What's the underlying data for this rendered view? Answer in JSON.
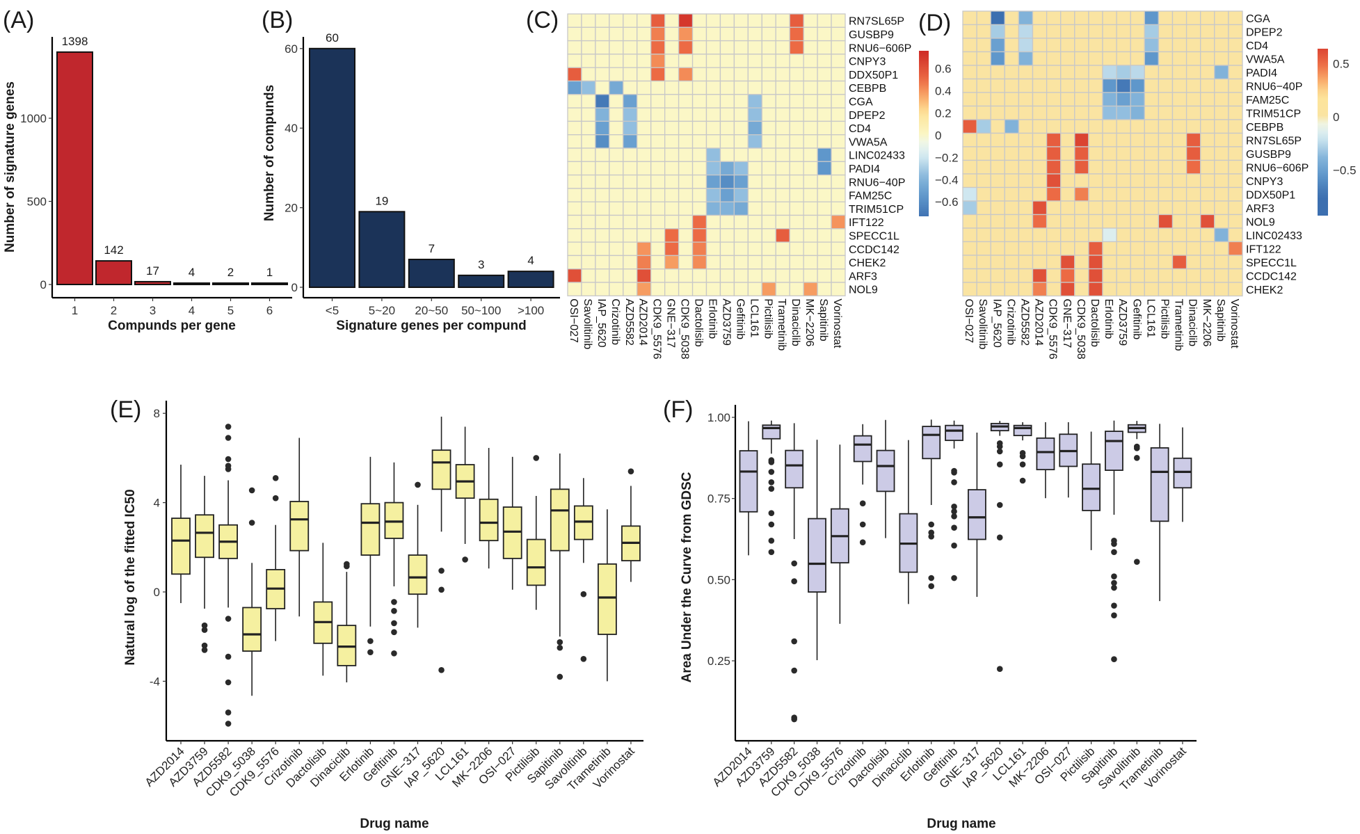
{
  "chart_data": [
    {
      "type": "bar",
      "panel_label": "(A)",
      "categories": [
        "1",
        "2",
        "3",
        "4",
        "5",
        "6"
      ],
      "values": [
        1398,
        142,
        17,
        4,
        2,
        1
      ],
      "xlabel": "Compunds per gene",
      "ylabel": "Number of signature genes",
      "yticks": [
        "0",
        "500",
        "1000"
      ],
      "ylim": [
        0,
        1490
      ],
      "bar_color": "#c0272d",
      "grid": false
    },
    {
      "type": "bar",
      "panel_label": "(B)",
      "categories": [
        "<5",
        "5~20",
        "20~50",
        "50~100",
        ">100"
      ],
      "values": [
        60,
        19,
        7,
        3,
        4
      ],
      "xlabel": "Signature genes per compund",
      "ylabel": "Number of compunds",
      "yticks": [
        "0",
        "20",
        "40",
        "60"
      ],
      "ylim": [
        0,
        63
      ],
      "bar_color": "#1b3358",
      "grid": false
    },
    {
      "type": "heatmap",
      "panel_label": "(C)",
      "rows": [
        "RN7SL65P",
        "GUSBP9",
        "RNU6−606P",
        "CNPY3",
        "DDX50P1",
        "CEBPB",
        "CGA",
        "DPEP2",
        "CD4",
        "VWA5A",
        "LINC02433",
        "PADI4",
        "RNU6−40P",
        "FAM25C",
        "TRIM51CP",
        "IFT122",
        "SPECC1L",
        "CCDC142",
        "CHEK2",
        "ARF3",
        "NOL9"
      ],
      "columns": [
        "OSI−027",
        "Savolitinib",
        "IAP_5620",
        "Crizotinib",
        "AZD5582",
        "AZD2014",
        "CDK9_5576",
        "GNE−317",
        "CDK9_5038",
        "Dactolisib",
        "Erlotinib",
        "AZD3759",
        "Gefitinib",
        "LCL161",
        "Pictilisib",
        "Trametinib",
        "Dinaciclib",
        "MK−2206",
        "Sapitinib",
        "Vorinostat"
      ],
      "values": {
        "RN7SL65P": {
          "CDK9_5576": 0.55,
          "CDK9_5038": 0.7,
          "Dinaciclib": 0.55
        },
        "GUSBP9": {
          "CDK9_5576": 0.45,
          "CDK9_5038": 0.4,
          "Dinaciclib": 0.5
        },
        "RNU6−606P": {
          "CDK9_5576": 0.5,
          "CDK9_5038": 0.5,
          "Dinaciclib": 0.5
        },
        "CNPY3": {
          "CDK9_5576": 0.42
        },
        "DDX50P1": {
          "OSI−027": 0.55,
          "CDK9_5576": 0.5,
          "CDK9_5038": 0.42
        },
        "CEBPB": {
          "OSI−027": -0.5,
          "Savolitinib": -0.35,
          "Crizotinib": -0.45
        },
        "CGA": {
          "IAP_5620": -0.7,
          "AZD5582": -0.5,
          "LCL161": -0.35
        },
        "DPEP2": {
          "IAP_5620": -0.4,
          "AZD5582": -0.35,
          "LCL161": -0.35
        },
        "CD4": {
          "IAP_5620": -0.5,
          "AZD5582": -0.35,
          "LCL161": -0.45
        },
        "VWA5A": {
          "IAP_5620": -0.6,
          "AZD5582": -0.5,
          "LCL161": -0.35
        },
        "LINC02433": {
          "Erlotinib": -0.35,
          "Sapitinib": -0.55
        },
        "PADI4": {
          "Erlotinib": -0.35,
          "AZD3759": -0.45,
          "Gefitinib": -0.35,
          "Sapitinib": -0.55
        },
        "RNU6−40P": {
          "Erlotinib": -0.5,
          "AZD3759": -0.6,
          "Gefitinib": -0.5
        },
        "FAM25C": {
          "Erlotinib": -0.35,
          "AZD3759": -0.5,
          "Gefitinib": -0.35
        },
        "TRIM51CP": {
          "Erlotinib": -0.4,
          "AZD3759": -0.4,
          "Gefitinib": -0.45
        },
        "IFT122": {
          "Dactolisib": 0.5,
          "Vorinostat": 0.4
        },
        "SPECC1L": {
          "GNE−317": 0.5,
          "Dactolisib": 0.5,
          "Trametinib": 0.55
        },
        "CCDC142": {
          "AZD2014": 0.4,
          "GNE−317": 0.5,
          "Dactolisib": 0.45
        },
        "CHEK2": {
          "AZD2014": 0.45,
          "GNE−317": 0.38,
          "Dactolisib": 0.42
        },
        "ARF3": {
          "OSI−027": 0.6,
          "AZD2014": 0.6
        },
        "NOL9": {
          "AZD2014": 0.38,
          "Pictilisib": 0.38,
          "MK−2206": 0.38
        }
      },
      "legend_ticks": [
        "0.6",
        "0.4",
        "0.2",
        "0",
        "−0.2",
        "−0.4",
        "−0.6"
      ],
      "color_range": [
        -0.73,
        0.76
      ],
      "colors": {
        "low": "#3f6fb0",
        "mid": "#fbf7c6",
        "high": "#d1302a",
        "cell_border": "#c8c8c8"
      }
    },
    {
      "type": "heatmap",
      "panel_label": "(D)",
      "rows": [
        "CGA",
        "DPEP2",
        "CD4",
        "VWA5A",
        "PADI4",
        "RNU6−40P",
        "FAM25C",
        "TRIM51CP",
        "CEBPB",
        "RN7SL65P",
        "GUSBP9",
        "RNU6−606P",
        "CNPY3",
        "DDX50P1",
        "ARF3",
        "NOL9",
        "LINC02433",
        "IFT122",
        "SPECC1L",
        "CCDC142",
        "CHEK2"
      ],
      "columns": [
        "OSI−027",
        "Savolitinib",
        "IAP_5620",
        "Crizotinib",
        "AZD5582",
        "AZD2014",
        "CDK9_5576",
        "GNE−317",
        "CDK9_5038",
        "Dactolisib",
        "Erlotinib",
        "AZD3759",
        "Gefitinib",
        "LCL161",
        "Pictilisib",
        "Trametinib",
        "Dinaciclib",
        "MK−2206",
        "Sapitinib",
        "Vorinostat"
      ],
      "values": {
        "CGA": {
          "IAP_5620": -0.75,
          "AZD5582": -0.4,
          "LCL161": -0.55
        },
        "DPEP2": {
          "IAP_5620": -0.3,
          "AZD5582": -0.25,
          "LCL161": -0.3
        },
        "CD4": {
          "IAP_5620": -0.5,
          "AZD5582": -0.25,
          "LCL161": -0.35
        },
        "VWA5A": {
          "IAP_5620": -0.55,
          "AZD5582": -0.4,
          "LCL161": -0.55
        },
        "PADI4": {
          "Erlotinib": -0.25,
          "AZD3759": -0.3,
          "Gefitinib": -0.25,
          "Sapitinib": -0.4
        },
        "RNU6−40P": {
          "Erlotinib": -0.55,
          "AZD3759": -0.7,
          "Gefitinib": -0.55
        },
        "FAM25C": {
          "Erlotinib": -0.4,
          "AZD3759": -0.5,
          "Gefitinib": -0.4
        },
        "TRIM51CP": {
          "Erlotinib": -0.35,
          "AZD3759": -0.35,
          "Gefitinib": -0.4
        },
        "CEBPB": {
          "OSI−027": 0.55,
          "Savolitinib": -0.3,
          "Crizotinib": -0.4
        },
        "RN7SL65P": {
          "CDK9_5576": 0.55,
          "CDK9_5038": 0.65,
          "Dinaciclib": 0.55
        },
        "GUSBP9": {
          "CDK9_5576": 0.55,
          "CDK9_5038": 0.55,
          "Dinaciclib": 0.55
        },
        "RNU6−606P": {
          "CDK9_5576": 0.55,
          "CDK9_5038": 0.55,
          "Dinaciclib": 0.5
        },
        "CNPY3": {
          "CDK9_5576": 0.6
        },
        "DDX50P1": {
          "OSI−027": -0.2,
          "CDK9_5576": 0.5,
          "CDK9_5038": 0.45
        },
        "ARF3": {
          "OSI−027": -0.3,
          "AZD2014": 0.6
        },
        "NOL9": {
          "AZD2014": 0.5,
          "Pictilisib": 0.6,
          "MK−2206": 0.6
        },
        "LINC02433": {
          "Erlotinib": -0.15,
          "Sapitinib": -0.4
        },
        "IFT122": {
          "Dactolisib": 0.55,
          "Vorinostat": 0.45
        },
        "SPECC1L": {
          "GNE−317": 0.6,
          "Dactolisib": 0.6,
          "Trametinib": 0.55
        },
        "CCDC142": {
          "AZD2014": 0.6,
          "GNE−317": 0.5,
          "Dactolisib": 0.6
        },
        "CHEK2": {
          "AZD2014": 0.45,
          "GNE−317": 0.6,
          "Dactolisib": 0.6
        }
      },
      "legend_ticks": [
        "0.5",
        "0",
        "−0.5"
      ],
      "color_range": [
        -0.93,
        0.64
      ],
      "colors": {
        "low": "#3f6fb0",
        "mid": "#fae4a2",
        "high": "#d1302a",
        "cell_border": "#c8c8c8"
      }
    },
    {
      "type": "boxplot",
      "panel_label": "(E)",
      "categories": [
        "AZD2014",
        "AZD3759",
        "AZD5582",
        "CDK9_5038",
        "CDK9_5576",
        "Crizotinib",
        "Dactolisib",
        "Dinaciclib",
        "Erlotinib",
        "Gefitinib",
        "GNE−317",
        "IAP_5620",
        "LCL161",
        "MK−2206",
        "OSI−027",
        "Pictilisib",
        "Sapitinib",
        "Savolitinib",
        "Trametinib",
        "Vorinostat"
      ],
      "boxes_min_q1_median_q3_max": [
        [
          -0.5,
          0.8,
          2.3,
          3.3,
          5.7
        ],
        [
          -0.75,
          1.55,
          2.65,
          3.45,
          5.2
        ],
        [
          -0.7,
          1.5,
          2.25,
          3.0,
          5.0
        ],
        [
          -4.65,
          -2.65,
          -1.9,
          -0.7,
          1.3
        ],
        [
          -2.2,
          -0.75,
          0.15,
          1.0,
          3.0
        ],
        [
          -1.1,
          1.85,
          3.25,
          4.05,
          6.9
        ],
        [
          -3.75,
          -2.3,
          -1.35,
          -0.45,
          2.2
        ],
        [
          -4.05,
          -3.3,
          -2.45,
          -1.5,
          0.9
        ],
        [
          -1.55,
          1.65,
          3.1,
          3.95,
          6.05
        ],
        [
          0.25,
          2.4,
          3.15,
          4.0,
          5.8
        ],
        [
          -1.6,
          -0.1,
          0.65,
          1.65,
          3.9
        ],
        [
          2.7,
          4.6,
          5.8,
          6.35,
          7.85
        ],
        [
          2.15,
          4.2,
          4.95,
          5.7,
          7.4
        ],
        [
          1.05,
          2.3,
          3.1,
          4.15,
          6.45
        ],
        [
          0.1,
          1.5,
          2.7,
          3.8,
          6.05
        ],
        [
          -0.8,
          0.3,
          1.1,
          2.35,
          4.3
        ],
        [
          -2.0,
          1.85,
          3.65,
          4.6,
          6.2
        ],
        [
          1.3,
          2.35,
          3.15,
          3.85,
          5.1
        ],
        [
          -4.0,
          -1.9,
          -0.25,
          1.25,
          3.7
        ],
        [
          0.45,
          1.4,
          2.2,
          2.95,
          4.75
        ]
      ],
      "outliers": [
        [],
        [
          -1.5,
          -1.7,
          -2.4,
          -2.6
        ],
        [
          7.4,
          6.9,
          5.95,
          5.65,
          5.5,
          -1.2,
          -2.9,
          -4.05,
          -5.4,
          -5.9
        ],
        [
          4.55,
          3.1
        ],
        [
          5.1,
          4.2
        ],
        [],
        [],
        [
          1.25,
          1.15
        ],
        [
          -2.2,
          -2.7
        ],
        [
          -0.45,
          -0.85,
          -1.4,
          -1.8,
          -2.75
        ],
        [
          4.8
        ],
        [
          0.95,
          0.1,
          -3.5
        ],
        [
          1.45
        ],
        [],
        [],
        [
          6.0
        ],
        [
          -2.25,
          -2.5,
          -3.8
        ],
        [
          -0.1,
          -3.0
        ],
        [],
        [
          5.4
        ]
      ],
      "xlabel": "Drug name",
      "ylabel": "Natural log of the fitted IC50",
      "yticks": [
        "8",
        "4",
        "0",
        "-4"
      ],
      "ylim": [
        -6.6,
        8.6
      ],
      "box_color": "#f5f0a0",
      "grid": false
    },
    {
      "type": "boxplot",
      "panel_label": "(F)",
      "categories": [
        "AZD2014",
        "AZD3759",
        "AZD5582",
        "CDK9_5038",
        "CDK9_5576",
        "Crizotinib",
        "Dactolisib",
        "Dinaciclib",
        "Erlotinib",
        "Gefitinib",
        "GNE−317",
        "IAP_5620",
        "LCL161",
        "MK−2206",
        "OSI−027",
        "Pictilisib",
        "Sapitinib",
        "Savolitinib",
        "Trametinib",
        "Vorinostat"
      ],
      "boxes_min_q1_median_q3_max": [
        [
          0.575,
          0.709,
          0.833,
          0.897,
          0.988
        ],
        [
          0.888,
          0.934,
          0.967,
          0.976,
          0.99
        ],
        [
          0.625,
          0.783,
          0.852,
          0.898,
          0.982
        ],
        [
          0.252,
          0.462,
          0.549,
          0.688,
          0.931
        ],
        [
          0.364,
          0.552,
          0.634,
          0.718,
          0.916
        ],
        [
          0.793,
          0.864,
          0.916,
          0.943,
          0.979
        ],
        [
          0.628,
          0.772,
          0.85,
          0.898,
          0.992
        ],
        [
          0.425,
          0.523,
          0.611,
          0.703,
          0.93
        ],
        [
          0.73,
          0.873,
          0.946,
          0.972,
          0.993
        ],
        [
          0.904,
          0.929,
          0.959,
          0.975,
          0.99
        ],
        [
          0.447,
          0.624,
          0.692,
          0.777,
          0.953
        ],
        [
          0.943,
          0.959,
          0.972,
          0.981,
          0.989
        ],
        [
          0.929,
          0.944,
          0.967,
          0.975,
          0.985
        ],
        [
          0.751,
          0.839,
          0.893,
          0.936,
          0.985
        ],
        [
          0.753,
          0.849,
          0.896,
          0.948,
          0.985
        ],
        [
          0.591,
          0.713,
          0.78,
          0.856,
          0.956
        ],
        [
          0.7,
          0.837,
          0.927,
          0.957,
          0.99
        ],
        [
          0.933,
          0.954,
          0.967,
          0.977,
          0.989
        ],
        [
          0.434,
          0.68,
          0.832,
          0.906,
          0.98
        ],
        [
          0.678,
          0.783,
          0.832,
          0.874,
          0.969
        ]
      ],
      "outliers": [
        [],
        [
          0.868,
          0.862,
          0.832,
          0.8,
          0.78,
          0.705,
          0.67,
          0.62,
          0.585
        ],
        [
          0.55,
          0.495,
          0.31,
          0.22,
          0.075,
          0.07
        ],
        [],
        [],
        [
          0.735,
          0.67,
          0.615
        ],
        [],
        [],
        [
          0.67,
          0.645,
          0.633,
          0.505,
          0.48
        ],
        [
          0.835,
          0.83,
          0.8,
          0.725,
          0.71,
          0.695,
          0.66,
          0.605,
          0.505
        ],
        [],
        [
          0.92,
          0.91,
          0.895,
          0.855,
          0.73,
          0.63,
          0.225
        ],
        [
          0.89,
          0.88,
          0.855,
          0.805
        ],
        [],
        [],
        [],
        [
          0.62,
          0.61,
          0.585,
          0.51,
          0.49,
          0.475,
          0.42,
          0.39,
          0.255
        ],
        [
          0.91,
          0.905,
          0.875,
          0.555
        ],
        [],
        []
      ],
      "xlabel": "Drug name",
      "ylabel": "Area Under the Curve from GDSC",
      "yticks": [
        "1.00",
        "0.75",
        "0.50",
        "0.25"
      ],
      "ylim": [
        0,
        1.04
      ],
      "box_color": "#cccbe6",
      "grid": false
    }
  ]
}
